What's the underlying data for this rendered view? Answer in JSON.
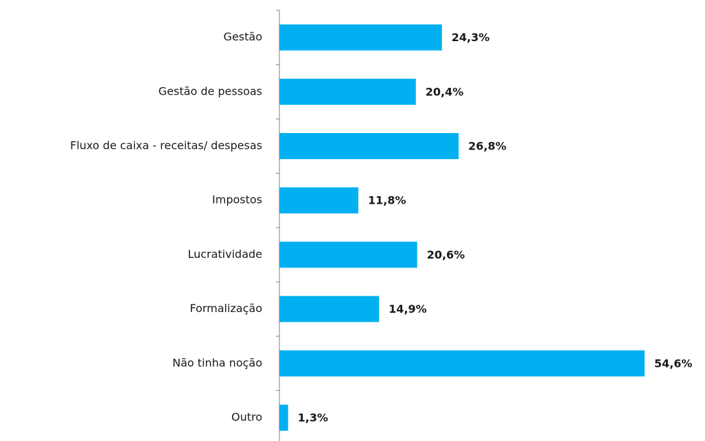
{
  "chart_data": {
    "type": "bar",
    "orientation": "horizontal",
    "categories": [
      "Gestão",
      "Gestão de pessoas",
      "Fluxo de caixa - receitas/ despesas",
      "Impostos",
      "Lucratividade",
      "Formalização",
      "Não tinha noção",
      "Outro"
    ],
    "values": [
      24.3,
      20.4,
      26.8,
      11.8,
      20.6,
      14.9,
      54.6,
      1.3
    ],
    "value_labels": [
      "24,3%",
      "20,4%",
      "26,8%",
      "11,8%",
      "20,6%",
      "14,9%",
      "54,6%",
      "1,3%"
    ],
    "color": "#00b0f0"
  }
}
